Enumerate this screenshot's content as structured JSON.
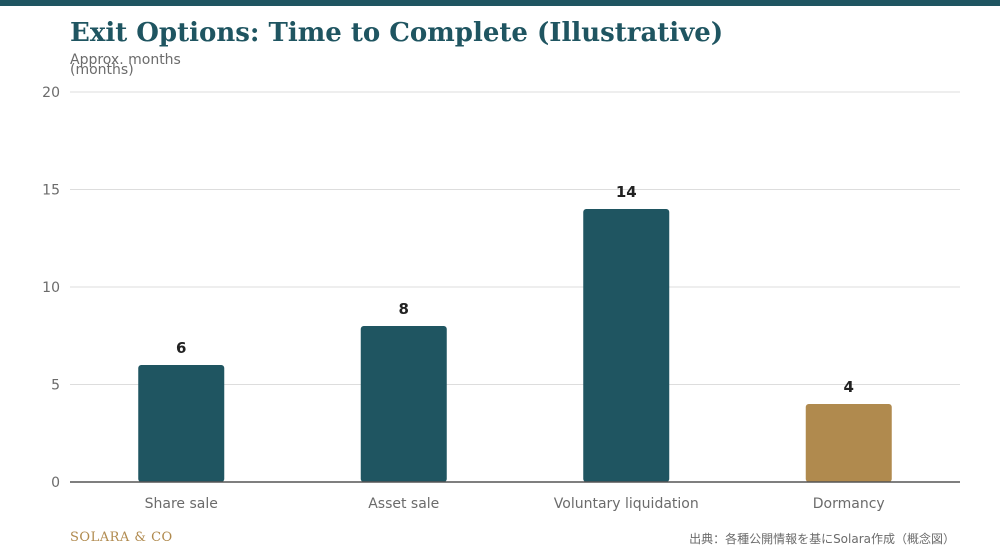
{
  "title": "Exit Options: Time to Complete (Illustrative)",
  "footer": {
    "brand": "SOLARA & CO",
    "source": "出典：各種公開情報を基にSolara作成（概念図）"
  },
  "colors": {
    "primary": "#1f5561",
    "accent": "#b08a4e",
    "grid": "#dddddd",
    "axis": "#6b6b6b",
    "label": "#222222"
  },
  "chart_data": {
    "type": "bar",
    "title": "Exit Options: Time to Complete (Illustrative)",
    "ylabel": "Approx. months (months)",
    "xlabel": "",
    "categories": [
      "Share sale",
      "Asset sale",
      "Voluntary liquidation",
      "Dormancy"
    ],
    "values": [
      6,
      8,
      14,
      4
    ],
    "highlight": [
      false,
      false,
      false,
      true
    ],
    "ylim": [
      0,
      20
    ],
    "yticks": [
      0,
      5,
      10,
      15,
      20
    ],
    "grid": true,
    "legend": "none",
    "data_labels": true
  }
}
